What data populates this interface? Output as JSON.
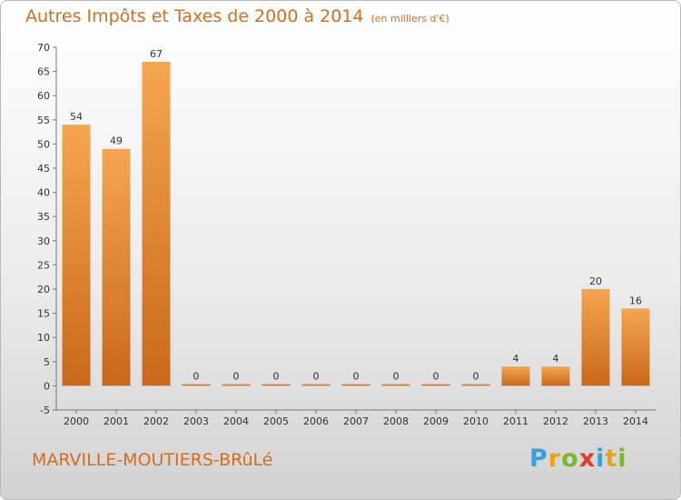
{
  "header": {
    "title": "Autres Impôts et Taxes de 2000 à 2014",
    "unit": "(en milliers d'€)"
  },
  "footer": {
    "commune": "MARVILLE-MOUTIERS-BRûLé",
    "logo": "Proxiti"
  },
  "colors": {
    "bar_top": "#f5a650",
    "bar_bottom": "#c8681a",
    "accent": "#d46e1e"
  },
  "chart_data": {
    "type": "bar",
    "title": "Autres Impôts et Taxes de 2000 à 2014",
    "subtitle": "(en milliers d'€)",
    "categories": [
      "2000",
      "2001",
      "2002",
      "2003",
      "2004",
      "2005",
      "2006",
      "2007",
      "2008",
      "2009",
      "2010",
      "2011",
      "2012",
      "2013",
      "2014"
    ],
    "values": [
      54,
      49,
      67,
      0,
      0,
      0,
      0,
      0,
      0,
      0,
      0,
      4,
      4,
      20,
      16
    ],
    "ylim": [
      -5,
      70
    ],
    "yticks": [
      -5,
      0,
      5,
      10,
      15,
      20,
      25,
      30,
      35,
      40,
      45,
      50,
      55,
      60,
      65,
      70
    ],
    "grid": false,
    "legend": "none"
  }
}
